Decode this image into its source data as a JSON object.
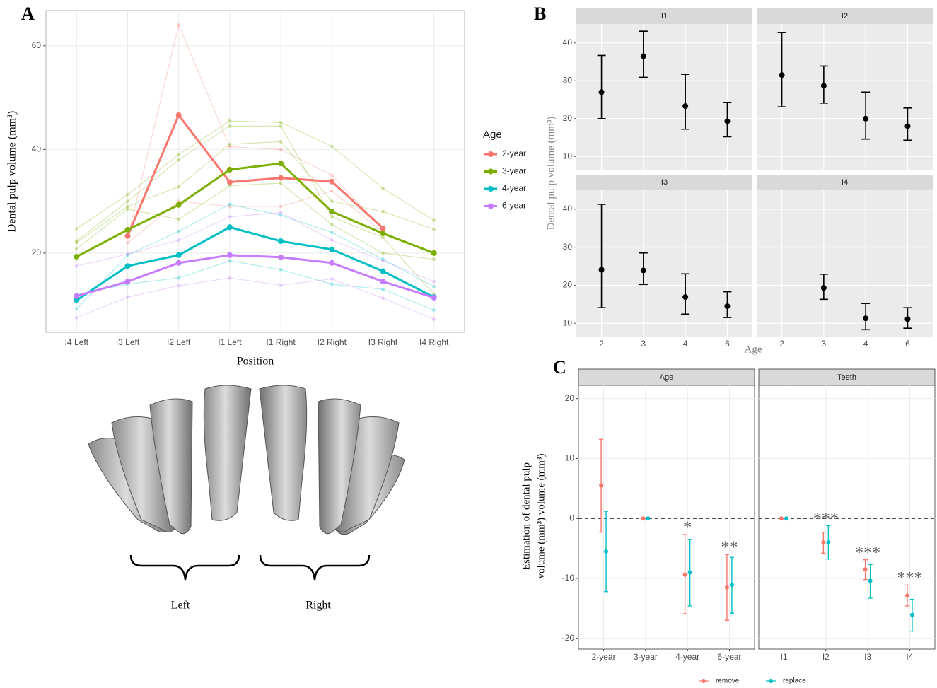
{
  "panel_labels": [
    "A",
    "B",
    "C"
  ],
  "illustration": {
    "labels": [
      "Left",
      "Right"
    ]
  },
  "chart_data": [
    {
      "type": "line",
      "x_label": "Position",
      "y_label": "Dental pulp volume (mm³)",
      "categories": [
        "I4 Left",
        "I3 Left",
        "I2 Left",
        "I1 Left",
        "I1 Right",
        "I2 Right",
        "I3 Right",
        "I4 Right"
      ],
      "ylim": [
        4.7,
        66.8
      ],
      "yticks": [
        20,
        40,
        60
      ],
      "grid": true,
      "legend_title": "Age",
      "legend_position": "right",
      "series": [
        {
          "name": "2-year",
          "color": "#f8766d",
          "values": [
            null,
            23.3,
            46.6,
            33.7,
            34.5,
            33.8,
            24.8,
            null
          ]
        },
        {
          "name": "3-year",
          "color": "#7cae00",
          "values": [
            19.3,
            24.5,
            29.3,
            36.1,
            37.3,
            28.0,
            23.8,
            20.0
          ]
        },
        {
          "name": "4-year",
          "color": "#00bfc4",
          "values": [
            10.9,
            17.5,
            19.6,
            25.0,
            22.3,
            20.7,
            16.5,
            11.5
          ]
        },
        {
          "name": "6-year",
          "color": "#c77cff",
          "values": [
            11.7,
            14.5,
            18.1,
            19.6,
            19.2,
            18.1,
            14.5,
            11.4
          ]
        }
      ],
      "individual_lines": [
        {
          "color": "#f8766d",
          "values": [
            null,
            23.0,
            64.0,
            40.5,
            40.0,
            35.0,
            24.5,
            null
          ]
        },
        {
          "color": "#f8766d",
          "values": [
            null,
            22.0,
            30.0,
            29.0,
            29.0,
            32.0,
            24.0,
            null
          ]
        },
        {
          "color": "#7cae00",
          "values": [
            24.7,
            31.3,
            39.0,
            45.5,
            45.2,
            40.6,
            32.5,
            26.3
          ]
        },
        {
          "color": "#7cae00",
          "values": [
            22.0,
            29.0,
            32.8,
            41.0,
            41.5,
            30.0,
            28.0,
            24.6
          ]
        },
        {
          "color": "#7cae00",
          "values": [
            20.8,
            28.5,
            26.5,
            33.0,
            33.5,
            25.5,
            20.0,
            18.8
          ]
        },
        {
          "color": "#7cae00",
          "values": [
            22.3,
            30.0,
            38.0,
            44.5,
            44.5,
            27.0,
            23.0,
            12.0
          ]
        },
        {
          "color": "#00bfc4",
          "values": [
            9.2,
            19.6,
            24.2,
            29.4,
            27.3,
            24.0,
            18.8,
            13.5
          ]
        },
        {
          "color": "#00bfc4",
          "values": [
            12.0,
            14.0,
            15.2,
            18.5,
            16.8,
            14.0,
            13.0,
            9.0
          ]
        },
        {
          "color": "#c77cff",
          "values": [
            17.5,
            19.8,
            22.5,
            27.0,
            27.8,
            22.5,
            18.5,
            14.5
          ]
        },
        {
          "color": "#c77cff",
          "values": [
            7.5,
            11.5,
            13.7,
            15.2,
            13.8,
            15.0,
            11.3,
            7.2
          ]
        }
      ]
    },
    {
      "type": "errorbar",
      "x_label": "Age",
      "y_label": "Dental pulp volume (mm³)",
      "categories": [
        "2",
        "3",
        "4",
        "6"
      ],
      "ylim": [
        6.5,
        45.0
      ],
      "yticks": [
        10,
        20,
        30,
        40
      ],
      "grid": true,
      "color": "#000000",
      "facets": [
        {
          "title": "I1",
          "values": [
            27.0,
            36.5,
            23.3,
            19.3
          ],
          "lower": [
            20.0,
            30.9,
            17.2,
            15.2
          ],
          "upper": [
            36.7,
            43.1,
            31.7,
            24.3
          ]
        },
        {
          "title": "I2",
          "values": [
            31.5,
            28.7,
            20.0,
            18.0
          ],
          "lower": [
            23.1,
            24.1,
            14.6,
            14.3
          ],
          "upper": [
            42.8,
            33.9,
            27.0,
            22.8
          ]
        },
        {
          "title": "I3",
          "values": [
            24.1,
            23.9,
            16.9,
            14.5
          ],
          "lower": [
            14.1,
            20.2,
            12.4,
            11.5
          ],
          "upper": [
            41.3,
            28.5,
            23.0,
            18.3
          ]
        },
        {
          "title": "I4",
          "values": [
            null,
            19.3,
            11.3,
            11.1
          ],
          "lower": [
            null,
            16.3,
            8.3,
            8.7
          ],
          "upper": [
            null,
            22.9,
            15.2,
            14.1
          ]
        }
      ]
    },
    {
      "type": "errorbar",
      "y_label": [
        "Estimation of dental pulp",
        "volume (mm³) volume (mm³)"
      ],
      "ylim": [
        -21.8,
        22.2
      ],
      "yticks": [
        -20,
        -10,
        0,
        10,
        20
      ],
      "grid": true,
      "reference_line": 0,
      "legend_position": "bottom",
      "series": [
        {
          "name": "remove",
          "color": "#f8766d"
        },
        {
          "name": "replace",
          "color": "#00bfc4"
        }
      ],
      "facets": [
        {
          "title": "Age",
          "categories": [
            "2-year",
            "3-year",
            "4-year",
            "6-year"
          ],
          "annotations": [
            null,
            null,
            "*",
            "**"
          ],
          "data": [
            {
              "values": [
                5.5,
                0,
                -9.4,
                -11.5
              ],
              "lower": [
                -2.3,
                0,
                -15.9,
                -17.0
              ],
              "upper": [
                13.2,
                0,
                -2.7,
                -6.0
              ]
            },
            {
              "values": [
                -5.5,
                0,
                -9.0,
                -11.1
              ],
              "lower": [
                -12.2,
                0,
                -14.6,
                -15.8
              ],
              "upper": [
                1.2,
                0,
                -3.5,
                -6.5
              ]
            }
          ]
        },
        {
          "title": "Teeth",
          "categories": [
            "I1",
            "I2",
            "I3",
            "I4"
          ],
          "annotations": [
            null,
            "***",
            "***",
            "***"
          ],
          "data": [
            {
              "values": [
                0,
                -4.0,
                -8.5,
                -12.9
              ],
              "lower": [
                0,
                -5.8,
                -10.2,
                -14.6
              ],
              "upper": [
                0,
                -2.3,
                -6.9,
                -11.1
              ]
            },
            {
              "values": [
                0,
                -4.0,
                -10.4,
                -16.1
              ],
              "lower": [
                0,
                -6.8,
                -13.3,
                -18.8
              ],
              "upper": [
                0,
                -1.2,
                -7.7,
                -13.5
              ]
            }
          ]
        }
      ]
    }
  ]
}
